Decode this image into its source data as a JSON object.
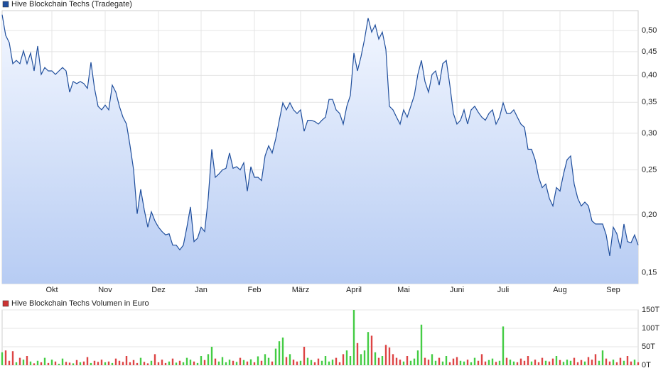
{
  "chart_data": [
    {
      "type": "line",
      "series": [
        {
          "name": "Hive Blockchain Techs (Tradegate)",
          "color": "#1f4e9c",
          "values": [
            0.541,
            0.488,
            0.471,
            0.424,
            0.431,
            0.424,
            0.452,
            0.424,
            0.447,
            0.409,
            0.463,
            0.402,
            0.416,
            0.409,
            0.409,
            0.402,
            0.409,
            0.416,
            0.409,
            0.368,
            0.388,
            0.384,
            0.388,
            0.384,
            0.375,
            0.427,
            0.375,
            0.343,
            0.337,
            0.345,
            0.337,
            0.381,
            0.368,
            0.343,
            0.325,
            0.314,
            0.282,
            0.25,
            0.201,
            0.227,
            0.205,
            0.188,
            0.203,
            0.194,
            0.188,
            0.184,
            0.181,
            0.182,
            0.172,
            0.172,
            0.168,
            0.172,
            0.188,
            0.208,
            0.175,
            0.178,
            0.188,
            0.184,
            0.217,
            0.277,
            0.241,
            0.245,
            0.25,
            0.252,
            0.272,
            0.252,
            0.254,
            0.25,
            0.259,
            0.225,
            0.254,
            0.241,
            0.241,
            0.237,
            0.268,
            0.282,
            0.272,
            0.292,
            0.32,
            0.349,
            0.337,
            0.349,
            0.337,
            0.331,
            0.337,
            0.303,
            0.32,
            0.32,
            0.318,
            0.314,
            0.32,
            0.325,
            0.355,
            0.355,
            0.337,
            0.331,
            0.314,
            0.343,
            0.362,
            0.447,
            0.409,
            0.439,
            0.479,
            0.532,
            0.496,
            0.514,
            0.479,
            0.496,
            0.455,
            0.343,
            0.337,
            0.325,
            0.314,
            0.337,
            0.325,
            0.343,
            0.362,
            0.402,
            0.431,
            0.388,
            0.368,
            0.402,
            0.409,
            0.381,
            0.424,
            0.431,
            0.381,
            0.331,
            0.314,
            0.32,
            0.337,
            0.314,
            0.337,
            0.343,
            0.333,
            0.325,
            0.32,
            0.331,
            0.337,
            0.314,
            0.325,
            0.349,
            0.331,
            0.331,
            0.337,
            0.325,
            0.314,
            0.309,
            0.277,
            0.277,
            0.263,
            0.241,
            0.229,
            0.233,
            0.217,
            0.209,
            0.229,
            0.225,
            0.245,
            0.263,
            0.268,
            0.233,
            0.217,
            0.209,
            0.213,
            0.209,
            0.194,
            0.191,
            0.191,
            0.191,
            0.181,
            0.163,
            0.188,
            0.182,
            0.169,
            0.191,
            0.175,
            0.174,
            0.181,
            0.172
          ]
        }
      ],
      "categories": [
        null,
        null,
        null,
        null,
        null,
        null,
        null,
        null,
        null,
        null,
        null,
        null,
        null,
        null,
        "Okt",
        null,
        null,
        null,
        null,
        null,
        null,
        null,
        null,
        null,
        null,
        null,
        null,
        null,
        null,
        "Nov",
        null,
        null,
        null,
        null,
        null,
        null,
        null,
        null,
        null,
        null,
        null,
        null,
        null,
        null,
        "Dez",
        null,
        null,
        null,
        null,
        null,
        null,
        null,
        null,
        null,
        null,
        null,
        "Jan",
        null,
        null,
        null,
        null,
        null,
        null,
        null,
        null,
        null,
        null,
        null,
        null,
        null,
        null,
        "Feb",
        null,
        null,
        null,
        null,
        null,
        null,
        null,
        null,
        null,
        null,
        null,
        null,
        "März",
        null,
        null,
        null,
        null,
        null,
        null,
        null,
        null,
        null,
        null,
        null,
        null,
        null,
        null,
        "April",
        null,
        null,
        null,
        null,
        null,
        null,
        null,
        null,
        null,
        null,
        null,
        null,
        null,
        "Mai",
        null,
        null,
        null,
        null,
        null,
        null,
        null,
        null,
        null,
        null,
        null,
        null,
        null,
        null,
        "Juni",
        null,
        null,
        null,
        null,
        null,
        null,
        null,
        null,
        null,
        null,
        null,
        null,
        "Juli",
        null,
        null,
        null,
        null,
        null,
        null,
        null,
        null,
        null,
        null,
        null,
        null,
        null,
        null,
        null,
        "Aug",
        null,
        null,
        null,
        null,
        null,
        null,
        null,
        null,
        null,
        null,
        null,
        null,
        null,
        null,
        "Sep",
        null,
        null,
        null,
        null,
        null,
        null,
        null
      ],
      "ylim": [
        0.142,
        0.552
      ],
      "yticks": [
        {
          "value": 0.15,
          "label": "0,15"
        },
        {
          "value": 0.2,
          "label": "0,20"
        },
        {
          "value": 0.25,
          "label": "0,25"
        },
        {
          "value": 0.3,
          "label": "0,30"
        },
        {
          "value": 0.35,
          "label": "0,35"
        },
        {
          "value": 0.4,
          "label": "0,40"
        },
        {
          "value": 0.45,
          "label": "0,45"
        },
        {
          "value": 0.5,
          "label": "0,50"
        }
      ],
      "log_scale": true,
      "grid": true,
      "area_fill": true
    },
    {
      "type": "bar",
      "series": [
        {
          "name": "Hive Blockchain Techs Volumen in Euro",
          "color": "#cc3333",
          "values": [
            35,
            40,
            12,
            38,
            8,
            20,
            15,
            25,
            10,
            5,
            12,
            8,
            20,
            6,
            15,
            10,
            4,
            18,
            9,
            7,
            5,
            14,
            8,
            10,
            22,
            6,
            12,
            9,
            15,
            8,
            10,
            6,
            18,
            12,
            9,
            25,
            8,
            14,
            6,
            20,
            9,
            5,
            12,
            30,
            8,
            15,
            6,
            10,
            18,
            7,
            12,
            8,
            20,
            15,
            10,
            6,
            25,
            14,
            30,
            50,
            18,
            10,
            22,
            8,
            15,
            12,
            9,
            20,
            14,
            10,
            16,
            8,
            24,
            12,
            30,
            20,
            10,
            45,
            65,
            75,
            22,
            30,
            15,
            10,
            12,
            50,
            20,
            14,
            8,
            18,
            12,
            25,
            10,
            15,
            20,
            8,
            30,
            40,
            25,
            150,
            60,
            30,
            40,
            90,
            80,
            35,
            20,
            25,
            55,
            48,
            30,
            20,
            15,
            10,
            25,
            12,
            18,
            40,
            110,
            20,
            15,
            30,
            12,
            20,
            10,
            25,
            8,
            18,
            22,
            12,
            10,
            15,
            8,
            20,
            12,
            30,
            10,
            14,
            18,
            9,
            12,
            105,
            20,
            15,
            10,
            8,
            18,
            12,
            25,
            10,
            15,
            8,
            20,
            12,
            10,
            18,
            25,
            14,
            9,
            15,
            12,
            20,
            8,
            14,
            10,
            22,
            15,
            30,
            12,
            40,
            18,
            10,
            15,
            8,
            20,
            12,
            25,
            10,
            15,
            8
          ]
        }
      ],
      "ylim": [
        0,
        150
      ],
      "yticks": [
        {
          "value": 0,
          "label": "0T"
        },
        {
          "value": 50,
          "label": "50T"
        },
        {
          "value": 100,
          "label": "100T"
        },
        {
          "value": 150,
          "label": "150T"
        }
      ],
      "grid": true,
      "up_color": "#44cc44",
      "down_color": "#dd4444"
    }
  ]
}
